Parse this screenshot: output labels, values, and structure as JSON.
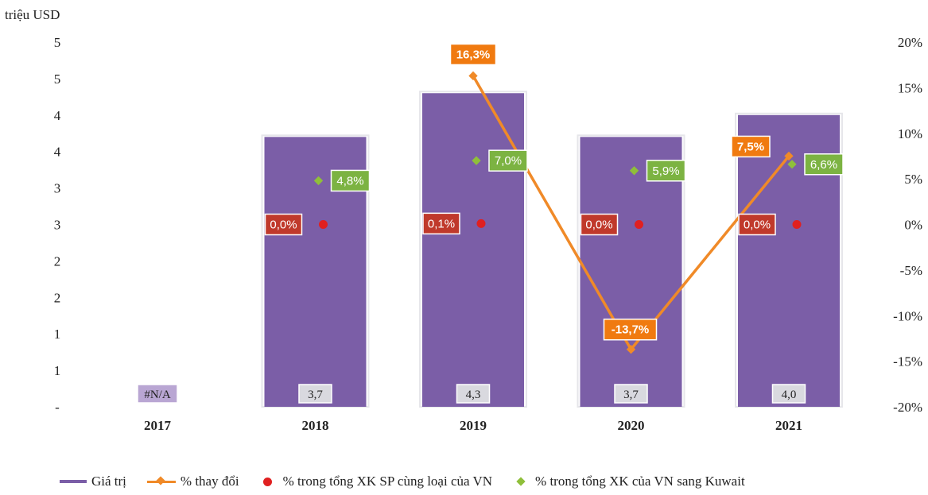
{
  "chart_data": {
    "type": "bar",
    "categories": [
      "2017",
      "2018",
      "2019",
      "2020",
      "2021"
    ],
    "y_left_label": "triệu USD",
    "y_left_ticks": [
      "-",
      "1",
      "1",
      "2",
      "2",
      "3",
      "3",
      "4",
      "4",
      "5",
      "5"
    ],
    "y_left_range": [
      0,
      5
    ],
    "y_right_ticks": [
      "-20%",
      "-15%",
      "-10%",
      "-5%",
      "0%",
      "5%",
      "10%",
      "15%",
      "20%"
    ],
    "y_right_range": [
      -20,
      20
    ],
    "series": [
      {
        "name": "Giá trị",
        "kind": "bar",
        "axis": "left",
        "values": [
          null,
          3.7,
          4.3,
          3.7,
          4.0
        ],
        "labels": [
          "#N/A",
          "3,7",
          "4,3",
          "3,7",
          "4,0"
        ],
        "color": "#7b5ea7"
      },
      {
        "name": "% thay đổi",
        "kind": "line",
        "axis": "right",
        "values": [
          null,
          null,
          16.3,
          -13.7,
          7.5
        ],
        "labels": [
          "",
          "",
          "16,3%",
          "-13,7%",
          "7,5%"
        ],
        "color": "#f08a28"
      },
      {
        "name": "% trong tổng XK SP cùng loại của VN",
        "kind": "scatter",
        "axis": "right",
        "values": [
          null,
          0.0,
          0.1,
          0.0,
          0.0
        ],
        "labels": [
          "",
          "0,0%",
          "0,1%",
          "0,0%",
          "0,0%"
        ],
        "color": "#e02020"
      },
      {
        "name": "% trong tổng XK của VN sang Kuwait",
        "kind": "scatter",
        "axis": "right",
        "values": [
          null,
          4.8,
          7.0,
          5.9,
          6.6
        ],
        "labels": [
          "",
          "4,8%",
          "7,0%",
          "5,9%",
          "6,6%"
        ],
        "color": "#8fbf3a"
      }
    ],
    "legend_position": "bottom",
    "grid": false
  },
  "legend": {
    "items": [
      "Giá trị",
      "% thay đổi",
      "% trong tổng XK SP cùng loại của VN",
      "% trong tổng XK của VN sang Kuwait"
    ]
  }
}
